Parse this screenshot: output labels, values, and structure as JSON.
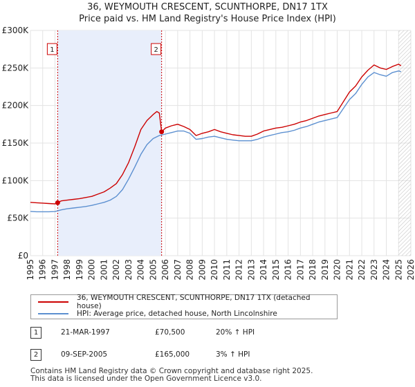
{
  "chart_data": {
    "type": "line",
    "title": "36, WEYMOUTH CRESCENT, SCUNTHORPE, DN17 1TX",
    "subtitle": "Price paid vs. HM Land Registry's House Price Index (HPI)",
    "xlim": [
      1995,
      2026
    ],
    "ylim": [
      0,
      300000
    ],
    "x_ticks": [
      "1995",
      "1996",
      "1997",
      "1998",
      "1999",
      "2000",
      "2001",
      "2002",
      "2003",
      "2004",
      "2005",
      "2006",
      "2007",
      "2008",
      "2009",
      "2010",
      "2011",
      "2012",
      "2013",
      "2014",
      "2015",
      "2016",
      "2017",
      "2018",
      "2019",
      "2020",
      "2021",
      "2022",
      "2023",
      "2024",
      "2025",
      "2026"
    ],
    "y_ticks": [
      {
        "value": 0,
        "label": "£0"
      },
      {
        "value": 50000,
        "label": "£50K"
      },
      {
        "value": 100000,
        "label": "£100K"
      },
      {
        "value": 150000,
        "label": "£150K"
      },
      {
        "value": 200000,
        "label": "£200K"
      },
      {
        "value": 250000,
        "label": "£250K"
      },
      {
        "value": 300000,
        "label": "£300K"
      }
    ],
    "shaded_span": [
      1997.22,
      2005.69
    ],
    "future_hatch_from": 2025.0,
    "series": [
      {
        "name": "36, WEYMOUTH CRESCENT, SCUNTHORPE, DN17 1TX (detached house)",
        "color": "#cc0000",
        "x": [
          1995,
          1995.5,
          1996,
          1996.5,
          1997,
          1997.22,
          1997.5,
          1998,
          1998.5,
          1999,
          1999.5,
          2000,
          2000.5,
          2001,
          2001.5,
          2002,
          2002.5,
          2003,
          2003.5,
          2004,
          2004.5,
          2005,
          2005.3,
          2005.5,
          2005.69,
          2006,
          2006.5,
          2007,
          2007.5,
          2008,
          2008.5,
          2009,
          2009.5,
          2010,
          2010.5,
          2011,
          2011.5,
          2012,
          2012.5,
          2013,
          2013.5,
          2014,
          2014.5,
          2015,
          2015.5,
          2016,
          2016.5,
          2017,
          2017.5,
          2018,
          2018.5,
          2019,
          2019.5,
          2020,
          2020.5,
          2021,
          2021.5,
          2022,
          2022.5,
          2023,
          2023.5,
          2024,
          2024.5,
          2025,
          2025.2
        ],
        "y": [
          71000,
          70500,
          70000,
          69500,
          69000,
          70500,
          73000,
          74000,
          75000,
          76000,
          77500,
          79000,
          82000,
          85000,
          90000,
          96000,
          108000,
          124000,
          145000,
          168000,
          180000,
          188000,
          192000,
          190000,
          165000,
          170000,
          173000,
          175000,
          172000,
          168000,
          160000,
          163000,
          165000,
          168000,
          165000,
          163000,
          161000,
          160000,
          159000,
          159000,
          162000,
          166000,
          168000,
          170000,
          171000,
          173000,
          175000,
          178000,
          180000,
          183000,
          186000,
          188000,
          190000,
          192000,
          205000,
          218000,
          226000,
          238000,
          247000,
          254000,
          250000,
          248000,
          252000,
          255000,
          253000
        ]
      },
      {
        "name": "HPI: Average price, detached house, North Lincolnshire",
        "color": "#5b8fd0",
        "x": [
          1995,
          1995.5,
          1996,
          1996.5,
          1997,
          1997.5,
          1998,
          1998.5,
          1999,
          1999.5,
          2000,
          2000.5,
          2001,
          2001.5,
          2002,
          2002.5,
          2003,
          2003.5,
          2004,
          2004.5,
          2005,
          2005.5,
          2006,
          2006.5,
          2007,
          2007.5,
          2008,
          2008.5,
          2009,
          2009.5,
          2010,
          2010.5,
          2011,
          2011.5,
          2012,
          2012.5,
          2013,
          2013.5,
          2014,
          2014.5,
          2015,
          2015.5,
          2016,
          2016.5,
          2017,
          2017.5,
          2018,
          2018.5,
          2019,
          2019.5,
          2020,
          2020.5,
          2021,
          2021.5,
          2022,
          2022.5,
          2023,
          2023.5,
          2024,
          2024.5,
          2025,
          2025.2
        ],
        "y": [
          59000,
          58500,
          58500,
          58500,
          58800,
          61000,
          62500,
          63500,
          64500,
          65500,
          67000,
          69000,
          71000,
          74000,
          79000,
          88000,
          102000,
          118000,
          135000,
          148000,
          156000,
          160000,
          162000,
          164000,
          166000,
          166000,
          163000,
          155000,
          156000,
          158000,
          159000,
          157000,
          155000,
          154000,
          153000,
          153000,
          153000,
          155000,
          158000,
          160000,
          162000,
          164000,
          165000,
          167000,
          170000,
          172000,
          175000,
          178000,
          180000,
          182000,
          184000,
          196000,
          208000,
          216000,
          228000,
          238000,
          244000,
          241000,
          239000,
          244000,
          246000,
          245000
        ]
      }
    ],
    "markers": [
      {
        "label": "1",
        "x": 1997.22,
        "y": 70500
      },
      {
        "label": "2",
        "x": 2005.69,
        "y": 165000
      }
    ]
  },
  "legend": {
    "property_label": "36, WEYMOUTH CRESCENT, SCUNTHORPE, DN17 1TX (detached house)",
    "hpi_label": "HPI: Average price, detached house, North Lincolnshire"
  },
  "transactions": [
    {
      "num": "1",
      "date": "21-MAR-1997",
      "price": "£70,500",
      "hpi": "20% ↑ HPI"
    },
    {
      "num": "2",
      "date": "09-SEP-2005",
      "price": "£165,000",
      "hpi": "3% ↑ HPI"
    }
  ],
  "footer": {
    "line1": "Contains HM Land Registry data © Crown copyright and database right 2025.",
    "line2": "This data is licensed under the Open Government Licence v3.0."
  },
  "colors": {
    "property": "#cc0000",
    "hpi": "#5b8fd0",
    "shade": "#e8eefb"
  }
}
